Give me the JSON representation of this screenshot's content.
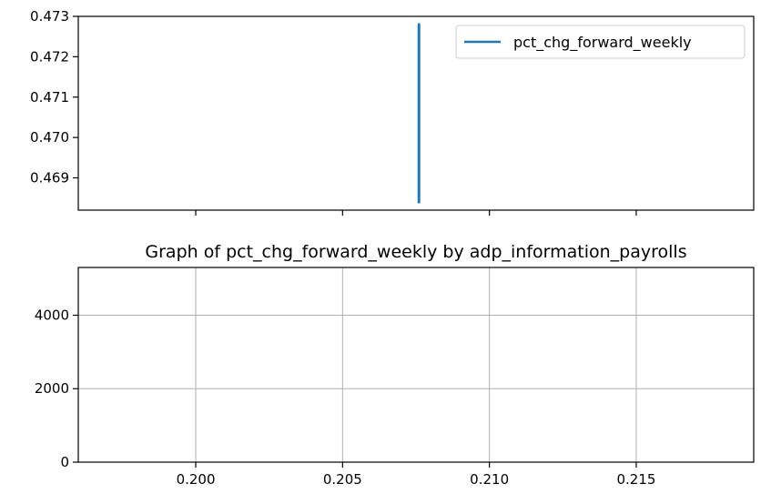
{
  "chart_data": [
    {
      "type": "line",
      "title": "",
      "xlabel": "",
      "ylabel": "",
      "xlim": [
        0.196,
        0.219
      ],
      "ylim": [
        0.4682,
        0.473
      ],
      "grid": false,
      "show_x_tick_labels": false,
      "x_ticks": [
        0.2,
        0.205,
        0.21,
        0.215
      ],
      "y_ticks": [
        0.469,
        0.47,
        0.471,
        0.472,
        0.473
      ],
      "y_tick_labels": [
        "0.469",
        "0.470",
        "0.471",
        "0.472",
        "0.473"
      ],
      "legend_placement": "top-right",
      "series": [
        {
          "name": "pct_chg_forward_weekly",
          "color": "#1f77b4",
          "x": [
            0.2076,
            0.2076
          ],
          "y": [
            0.4684,
            0.4728
          ]
        }
      ]
    },
    {
      "type": "line",
      "title": "Graph of pct_chg_forward_weekly by adp_information_payrolls",
      "xlabel": "",
      "ylabel": "",
      "xlim": [
        0.196,
        0.219
      ],
      "ylim": [
        0,
        5300
      ],
      "grid": true,
      "show_x_tick_labels": true,
      "x_ticks": [
        0.2,
        0.205,
        0.21,
        0.215
      ],
      "x_tick_labels": [
        "0.200",
        "0.205",
        "0.210",
        "0.215"
      ],
      "y_ticks": [
        0,
        2000,
        4000
      ],
      "y_tick_labels": [
        "0",
        "2000",
        "4000"
      ],
      "series": []
    }
  ]
}
